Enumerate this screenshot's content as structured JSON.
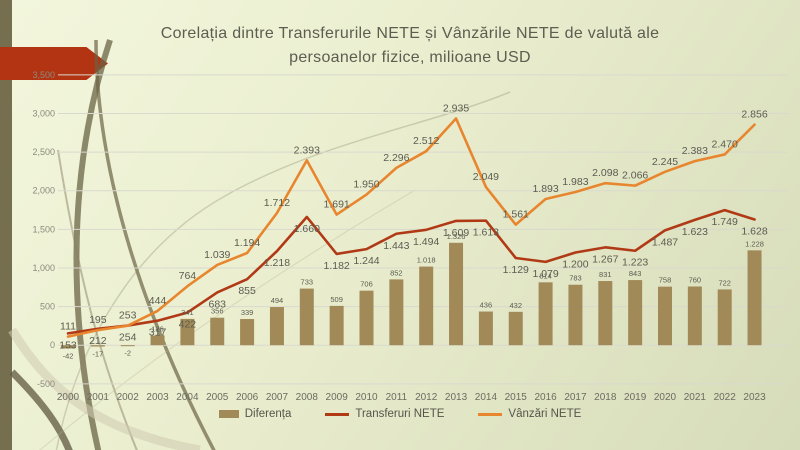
{
  "slide": {
    "title_line1": "Corelația dintre Transferurile NETE și Vânzările NETE de valută ale",
    "title_line2": "persoanelor fizice, milioane USD"
  },
  "colors": {
    "bar": "#a18a57",
    "transferuri_line": "#b13a16",
    "vanzari_line": "#e8862f",
    "accent_arrow": "#b23412",
    "side_strip": "#756e4f",
    "gridline": "#d9d9cd",
    "axis_text": "#8b8b7f",
    "label_text": "#5c5c50"
  },
  "legend": [
    {
      "label": "Diferența",
      "swatch": "bar"
    },
    {
      "label": "Transferuri NETE",
      "swatch": "line"
    },
    {
      "label": "Vânzări NETE",
      "swatch": "line"
    }
  ],
  "chart_data": {
    "type": "combo",
    "title": "Corelația dintre Transferurile NETE și Vânzările NETE de valută ale persoanelor fizice, milioane USD",
    "categories": [
      "2000",
      "2001",
      "2002",
      "2003",
      "2004",
      "2005",
      "2006",
      "2007",
      "2008",
      "2009",
      "2010",
      "2011",
      "2012",
      "2013",
      "2014",
      "2015",
      "2016",
      "2017",
      "2018",
      "2019",
      "2020",
      "2021",
      "2022",
      "2023"
    ],
    "ylim": [
      -500,
      3500
    ],
    "ytick_step": 500,
    "y_ticks": [
      "-500",
      "0",
      "500",
      "1,000",
      "1,500",
      "2,000",
      "2,500",
      "3,000",
      "3,500"
    ],
    "grid": true,
    "legend_position": "bottom",
    "series": [
      {
        "name": "Diferența",
        "type": "bar",
        "color": "#a18a57",
        "values": [
          -42,
          -17,
          -2,
          126,
          341,
          356,
          339,
          494,
          733,
          509,
          706,
          852,
          1018,
          1326,
          436,
          432,
          814,
          783,
          831,
          843,
          758,
          760,
          722,
          1228
        ],
        "labels": [
          "-42",
          "-17",
          "-2",
          "126",
          "341",
          "356",
          "339",
          "494",
          "733",
          "509",
          "706",
          "852",
          "1.018",
          "1.326",
          "436",
          "432",
          "814",
          "783",
          "831",
          "843",
          "758",
          "760",
          "722",
          "1.228"
        ]
      },
      {
        "name": "Transferuri NETE",
        "type": "line",
        "color": "#b13a16",
        "values": [
          153,
          212,
          254,
          317,
          422,
          683,
          855,
          1218,
          1660,
          1182,
          1244,
          1443,
          1494,
          1609,
          1613,
          1129,
          1079,
          1200,
          1267,
          1223,
          1487,
          1623,
          1749,
          1628
        ],
        "labels": [
          "153",
          "212",
          "254",
          "317",
          "422",
          "683",
          "855",
          "1.218",
          "1.660",
          "1.182",
          "1.244",
          "1.443",
          "1.494",
          "1.609",
          "1.613",
          "1.129",
          "1.079",
          "1.200",
          "1.267",
          "1.223",
          "1.487",
          "1.623",
          "1.749",
          "1.628"
        ]
      },
      {
        "name": "Vânzări NETE",
        "type": "line",
        "color": "#e8862f",
        "values": [
          111,
          195,
          253,
          444,
          764,
          1039,
          1194,
          1712,
          2393,
          1691,
          1950,
          2296,
          2512,
          2935,
          2049,
          1561,
          1893,
          1983,
          2098,
          2066,
          2245,
          2383,
          2470,
          2856
        ],
        "labels": [
          "111",
          "195",
          "253",
          "444",
          "764",
          "1.039",
          "1.194",
          "1.712",
          "2.393",
          "1.691",
          "1.950",
          "2.296",
          "2.512",
          "2.935",
          "2.049",
          "1.561",
          "1.893",
          "1.983",
          "2.098",
          "2.066",
          "2.245",
          "2.383",
          "2.470",
          "2.856"
        ]
      }
    ]
  }
}
